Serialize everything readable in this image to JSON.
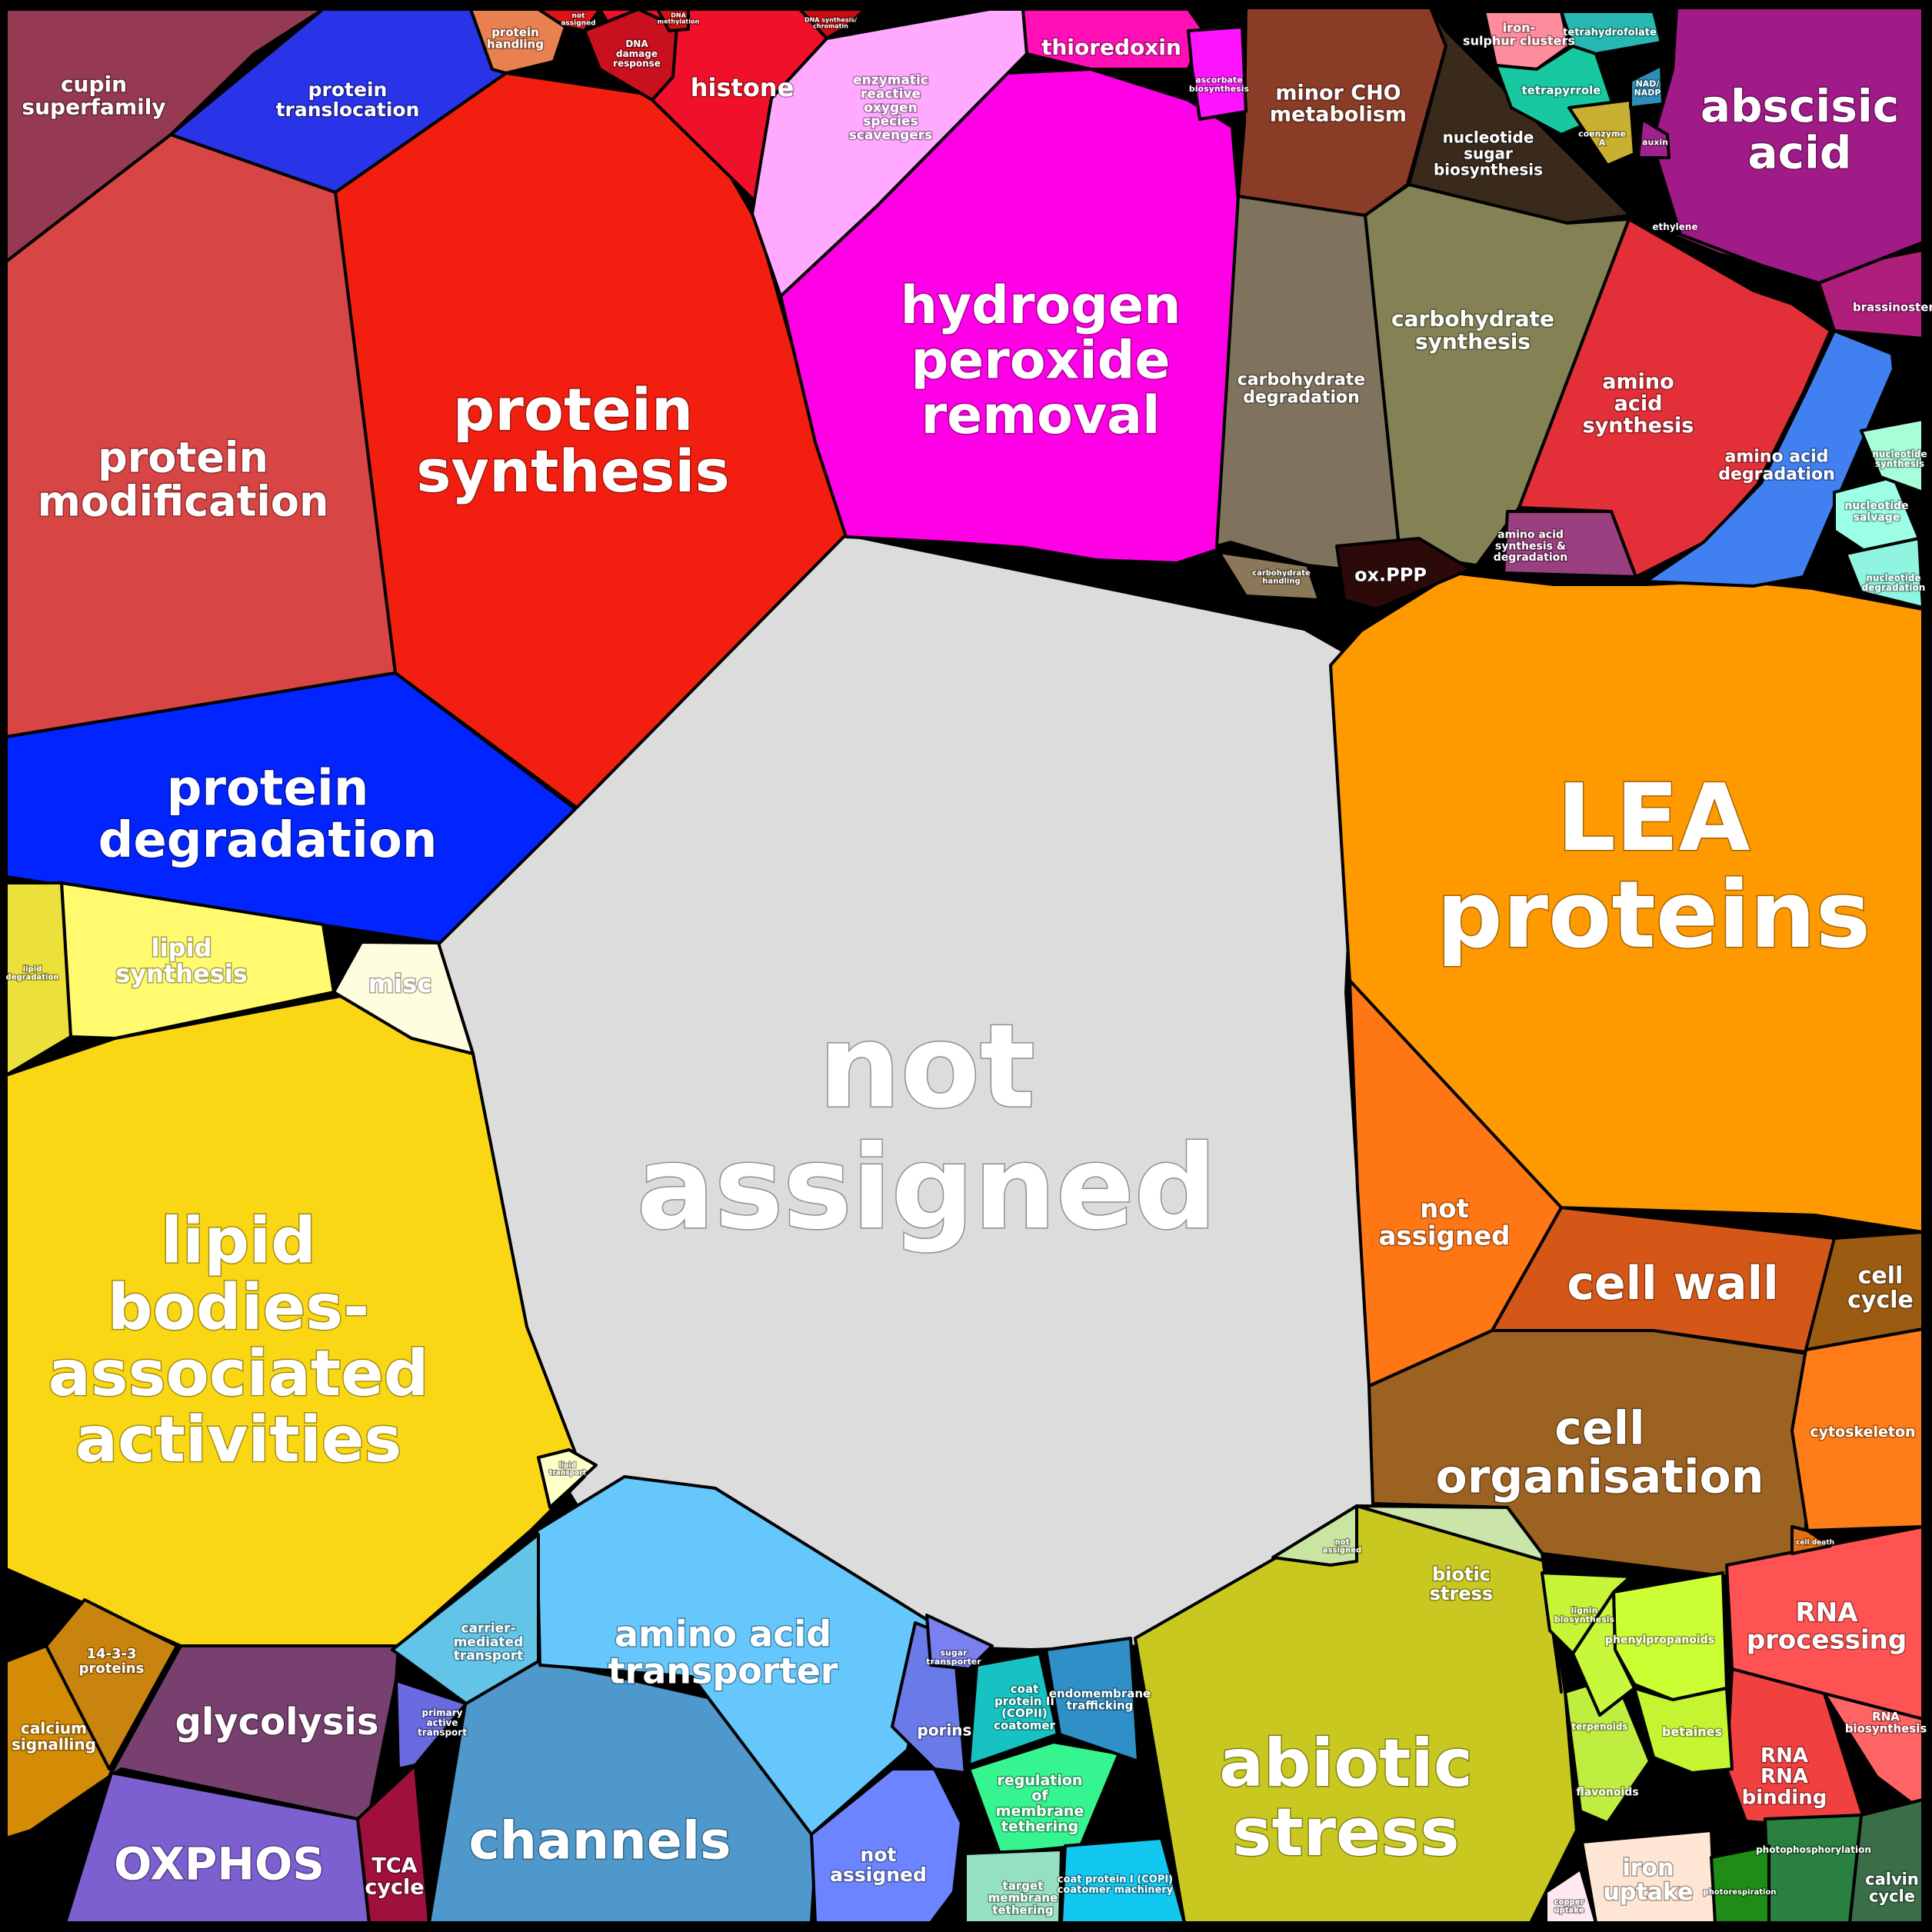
{
  "chart_data": {
    "type": "voronoi-treemap",
    "title": "",
    "cells": [
      {
        "label": "not assigned",
        "color": "#dcdcdc"
      },
      {
        "label": "LEA proteins",
        "color": "#ff9900"
      },
      {
        "label": "lipid bodies-associated activities",
        "color": "#fad714"
      },
      {
        "label": "protein synthesis",
        "color": "#f21f10"
      },
      {
        "label": "protein modification",
        "color": "#d84545"
      },
      {
        "label": "protein degradation",
        "color": "#0224ff"
      },
      {
        "label": "hydrogen peroxide removal",
        "color": "#ff00e6"
      },
      {
        "label": "abiotic stress",
        "color": "#c8c820"
      },
      {
        "label": "channels",
        "color": "#4f98cc"
      },
      {
        "label": "amino acid transporter",
        "color": "#65c7fc"
      },
      {
        "label": "cell organisation",
        "color": "#9c6222"
      },
      {
        "label": "cell wall",
        "color": "#d55717"
      },
      {
        "label": "not assigned",
        "color": "#ff7615"
      },
      {
        "label": "glycolysis",
        "color": "#77406f"
      },
      {
        "label": "OXPHOS",
        "color": "#7c60d0"
      },
      {
        "label": "abscisic acid",
        "color": "#a01b87"
      },
      {
        "label": "carbohydrate synthesis",
        "color": "#848255"
      },
      {
        "label": "carbohydrate degradation",
        "color": "#7f735e"
      },
      {
        "label": "amino acid synthesis",
        "color": "#e22f38"
      },
      {
        "label": "amino acid degradation",
        "color": "#4180f0"
      },
      {
        "label": "minor CHO metabolism",
        "color": "#8b3c27"
      },
      {
        "label": "nucleotide sugar biosynthesis",
        "color": "#3a2a1c"
      },
      {
        "label": "histone",
        "color": "#f0102a"
      },
      {
        "label": "cupin superfamily",
        "color": "#953a52"
      },
      {
        "label": "protein translocation",
        "color": "#2933e8"
      },
      {
        "label": "thioredoxin",
        "color": "#ff0fb5"
      },
      {
        "label": "enzymatic reactive oxygen species scavengers",
        "color": "#ffa9ff"
      },
      {
        "label": "lipid synthesis",
        "color": "#fffa6e"
      },
      {
        "label": "misc",
        "color": "#fffde0"
      },
      {
        "label": "RNA processing",
        "color": "#ff5252"
      },
      {
        "label": "RNA RNA binding",
        "color": "#f04040"
      },
      {
        "label": "RNA biosynthesis",
        "color": "#ff6464"
      },
      {
        "label": "biotic stress",
        "color": "#cbe4aa"
      },
      {
        "label": "cell cycle",
        "color": "#9b5c12"
      },
      {
        "label": "cytoskeleton",
        "color": "#ff7d18"
      },
      {
        "label": "TCA cycle",
        "color": "#a0103c"
      },
      {
        "label": "ox.PPP",
        "color": "#2c0a0a"
      },
      {
        "label": "iron uptake",
        "color": "#ffe6d4"
      },
      {
        "label": "calvin cycle",
        "color": "#3a6e48"
      },
      {
        "label": "photophosphorylation",
        "color": "#2a8040"
      },
      {
        "label": "porins",
        "color": "#6a7ae8"
      },
      {
        "label": "not assigned",
        "color": "#6c84ff"
      },
      {
        "label": "carrier-mediated transport",
        "color": "#62c4e6"
      },
      {
        "label": "primary active transport",
        "color": "#6a6ae0"
      },
      {
        "label": "regulation of membrane tethering and fusion",
        "color": "#36f590"
      },
      {
        "label": "coat protein II (COPII) coatomer machinery",
        "color": "#17c2c2"
      },
      {
        "label": "endomembrane trafficking",
        "color": "#2f90c8"
      },
      {
        "label": "coat protein I (COPI) coatomer machinery",
        "color": "#12c8f0"
      },
      {
        "label": "target membrane tethering",
        "color": "#95e0c0"
      },
      {
        "label": "calcium signalling",
        "color": "#d48c06"
      },
      {
        "label": "14-3-3 proteins",
        "color": "#c98410"
      },
      {
        "label": "iron-sulphur clusters",
        "color": "#ff8c9c"
      },
      {
        "label": "tetrahydrofolate",
        "color": "#27b8b4"
      },
      {
        "label": "tetrapyrrole",
        "color": "#18c8a0"
      },
      {
        "label": "brassinosteroid",
        "color": "#b01e7c"
      },
      {
        "label": "ethylene",
        "color": "#b82890"
      },
      {
        "label": "phenylpropanoids",
        "color": "#ccff33"
      },
      {
        "label": "betaines",
        "color": "#c4f530"
      },
      {
        "label": "flavonoids",
        "color": "#c0ee40"
      },
      {
        "label": "terpenoids",
        "color": "#c8f83c"
      },
      {
        "label": "lignin biosynthesis",
        "color": "#c6f538"
      },
      {
        "label": "nucleotide salvage",
        "color": "#9cffe6"
      },
      {
        "label": "nucleotide degradation",
        "color": "#8ff5e0"
      },
      {
        "label": "nucleotide synthesis",
        "color": "#a6ffd8"
      },
      {
        "label": "protein handling",
        "color": "#e88050"
      },
      {
        "label": "DNA damage response",
        "color": "#c8101e"
      },
      {
        "label": "amino acid synthesis & degradation",
        "color": "#9a4080"
      },
      {
        "label": "lipid degradation",
        "color": "#ece03a"
      },
      {
        "label": "ascorbate biosynthesis",
        "color": "#ff14ff"
      },
      {
        "label": "sugar transporter",
        "color": "#7a80ef"
      },
      {
        "label": "carbohydrate handling",
        "color": "#8a7858"
      },
      {
        "label": "auxin",
        "color": "#a02090"
      },
      {
        "label": "coenzyme A",
        "color": "#c8b030"
      },
      {
        "label": "NAD/ NADP",
        "color": "#2d8fb8"
      },
      {
        "label": "copper uptake",
        "color": "#ffe8f0"
      },
      {
        "label": "photorespiration",
        "color": "#1f8c18"
      },
      {
        "label": "not assigned",
        "color": "#c9e6a0"
      },
      {
        "label": "cell death",
        "color": "#e07010"
      },
      {
        "label": "lipid transport",
        "color": "#ffffc8"
      },
      {
        "label": "DNA methylation",
        "color": "#d01010"
      },
      {
        "label": "not assigned",
        "color": "#e01418"
      },
      {
        "label": "DNA synthesis/ chromatin structure",
        "color": "#c80c14"
      }
    ]
  }
}
